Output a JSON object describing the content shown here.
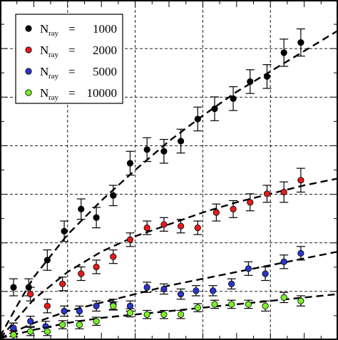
{
  "chart_data": {
    "type": "scatter",
    "title": "",
    "xlabel": "",
    "ylabel": "",
    "xlim": [
      0,
      10
    ],
    "ylim": [
      0,
      1
    ],
    "grid": true,
    "grid_style": "dashed",
    "legend_placement": "top-left",
    "series": [
      {
        "name": "1000",
        "legend_prefix": "N",
        "legend_sub": "ray",
        "legend_eq": "=",
        "color": "#000000",
        "x": [
          0.4,
          0.85,
          1.4,
          1.9,
          2.4,
          2.85,
          3.35,
          3.85,
          4.35,
          4.85,
          5.35,
          5.85,
          6.35,
          6.9,
          7.4,
          7.9,
          8.4,
          8.9
        ],
        "y": [
          0.155,
          0.155,
          0.235,
          0.32,
          0.385,
          0.36,
          0.425,
          0.52,
          0.56,
          0.555,
          0.585,
          0.65,
          0.68,
          0.71,
          0.76,
          0.775,
          0.845,
          0.875
        ],
        "err": [
          0.025,
          0.025,
          0.03,
          0.03,
          0.03,
          0.03,
          0.03,
          0.035,
          0.035,
          0.035,
          0.035,
          0.035,
          0.035,
          0.035,
          0.035,
          0.035,
          0.04,
          0.04
        ],
        "fit_x": [
          0.0,
          0.5,
          1.0,
          2.0,
          3.0,
          4.0,
          5.0,
          6.0,
          7.0,
          8.0,
          9.0,
          10.0
        ],
        "fit_y": [
          0.01,
          0.1,
          0.185,
          0.31,
          0.41,
          0.5,
          0.585,
          0.66,
          0.73,
          0.79,
          0.85,
          0.91
        ]
      },
      {
        "name": "2000",
        "legend_prefix": "N",
        "legend_sub": "ray",
        "legend_eq": "=",
        "color": "#e41a1c",
        "x": [
          0.4,
          0.9,
          1.4,
          1.85,
          2.4,
          2.85,
          3.35,
          3.85,
          4.35,
          4.85,
          5.35,
          5.85,
          6.4,
          6.9,
          7.4,
          7.9,
          8.4,
          8.9
        ],
        "y": [
          0.03,
          0.135,
          0.1,
          0.165,
          0.195,
          0.215,
          0.245,
          0.295,
          0.33,
          0.34,
          0.335,
          0.33,
          0.375,
          0.385,
          0.405,
          0.43,
          0.435,
          0.47
        ],
        "err": [
          0.02,
          0.02,
          0.02,
          0.02,
          0.02,
          0.02,
          0.02,
          0.02,
          0.02,
          0.02,
          0.02,
          0.02,
          0.025,
          0.025,
          0.025,
          0.025,
          0.03,
          0.035
        ],
        "fit_x": [
          0.0,
          1.0,
          2.0,
          3.0,
          4.0,
          5.0,
          6.0,
          7.0,
          8.0,
          9.0,
          10.0
        ],
        "fit_y": [
          0.005,
          0.12,
          0.2,
          0.26,
          0.305,
          0.34,
          0.375,
          0.405,
          0.43,
          0.455,
          0.475
        ]
      },
      {
        "name": "5000",
        "legend_prefix": "N",
        "legend_sub": "ray",
        "legend_eq": "=",
        "color": "#2936c8",
        "x": [
          0.4,
          0.9,
          1.35,
          1.9,
          2.35,
          2.85,
          3.35,
          3.85,
          4.35,
          4.85,
          5.35,
          5.8,
          6.3,
          6.85,
          7.35,
          7.85,
          8.4,
          8.9
        ],
        "y": [
          0.035,
          0.055,
          0.04,
          0.085,
          0.085,
          0.1,
          0.105,
          0.1,
          0.155,
          0.15,
          0.135,
          0.145,
          0.145,
          0.165,
          0.21,
          0.195,
          0.23,
          0.255
        ],
        "err": [
          0.015,
          0.015,
          0.015,
          0.015,
          0.015,
          0.015,
          0.015,
          0.015,
          0.015,
          0.015,
          0.015,
          0.015,
          0.015,
          0.015,
          0.02,
          0.02,
          0.02,
          0.02
        ],
        "fit_x": [
          0.0,
          1.0,
          2.0,
          3.0,
          4.0,
          5.0,
          6.0,
          7.0,
          8.0,
          9.0,
          10.0
        ],
        "fit_y": [
          0.005,
          0.05,
          0.085,
          0.11,
          0.135,
          0.16,
          0.18,
          0.2,
          0.22,
          0.24,
          0.26
        ]
      },
      {
        "name": "10000",
        "legend_prefix": "N",
        "legend_sub": "ray",
        "legend_eq": "=",
        "color": "#7bef2a",
        "x": [
          0.4,
          0.9,
          1.4,
          1.85,
          2.35,
          2.85,
          3.35,
          3.85,
          4.35,
          4.85,
          5.35,
          5.85,
          6.35,
          6.85,
          7.35,
          7.85,
          8.4,
          8.9
        ],
        "y": [
          0.015,
          0.025,
          0.025,
          0.045,
          0.045,
          0.055,
          0.1,
          0.08,
          0.075,
          0.075,
          0.075,
          0.095,
          0.105,
          0.105,
          0.105,
          0.1,
          0.125,
          0.115
        ],
        "err": [
          0.012,
          0.012,
          0.012,
          0.012,
          0.012,
          0.012,
          0.012,
          0.012,
          0.012,
          0.012,
          0.012,
          0.012,
          0.012,
          0.012,
          0.012,
          0.015,
          0.015,
          0.015
        ],
        "fit_x": [
          0.0,
          1.0,
          2.0,
          3.0,
          4.0,
          5.0,
          6.0,
          7.0,
          8.0,
          9.0,
          10.0
        ],
        "fit_y": [
          0.005,
          0.03,
          0.05,
          0.065,
          0.075,
          0.085,
          0.095,
          0.105,
          0.115,
          0.125,
          0.135
        ]
      }
    ]
  }
}
